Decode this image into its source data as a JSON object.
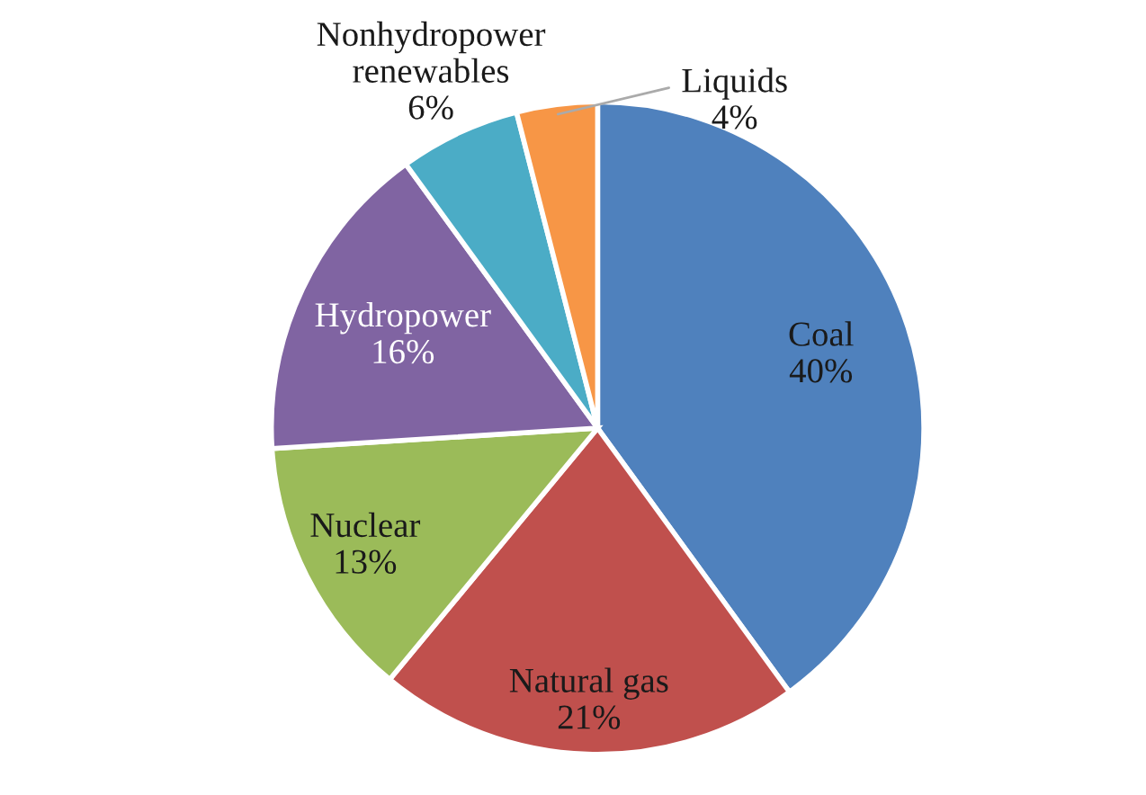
{
  "chart_data": {
    "type": "pie",
    "categories": [
      "Coal",
      "Natural gas",
      "Nuclear",
      "Hydropower",
      "Nonhydropower\nrenewables",
      "Liquids"
    ],
    "values": [
      40,
      21,
      13,
      16,
      6,
      4
    ],
    "value_labels": [
      "40%",
      "21%",
      "13%",
      "16%",
      "6%",
      "4%"
    ],
    "colors": [
      "#4f81bd",
      "#c0504d",
      "#9bbb59",
      "#8064a2",
      "#4bacc6",
      "#f79646"
    ]
  }
}
